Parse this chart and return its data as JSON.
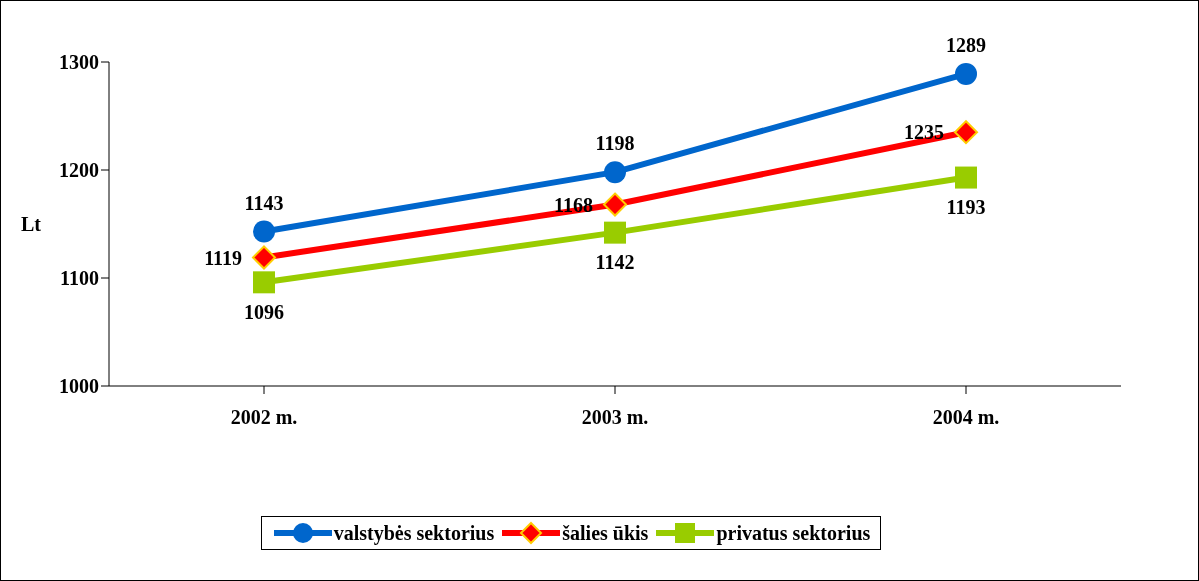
{
  "chart_data": {
    "type": "line",
    "ylabel": "Lt",
    "categories": [
      "2002 m.",
      "2003 m.",
      "2004 m."
    ],
    "series": [
      {
        "name": "valstybės sektorius",
        "color": "#0066cc",
        "marker": "circle",
        "values": [
          1143,
          1198,
          1289
        ]
      },
      {
        "name": "šalies ūkis",
        "color": "#ff0000",
        "marker": "diamond",
        "values": [
          1119,
          1168,
          1235
        ]
      },
      {
        "name": "privatus sektorius",
        "color": "#99cc00",
        "marker": "square",
        "values": [
          1096,
          1142,
          1193
        ]
      }
    ],
    "ylim": [
      1000,
      1300
    ],
    "yticks": [
      1000,
      1100,
      1200,
      1300
    ],
    "grid": false,
    "legend": "bottom",
    "data_labels": true
  }
}
